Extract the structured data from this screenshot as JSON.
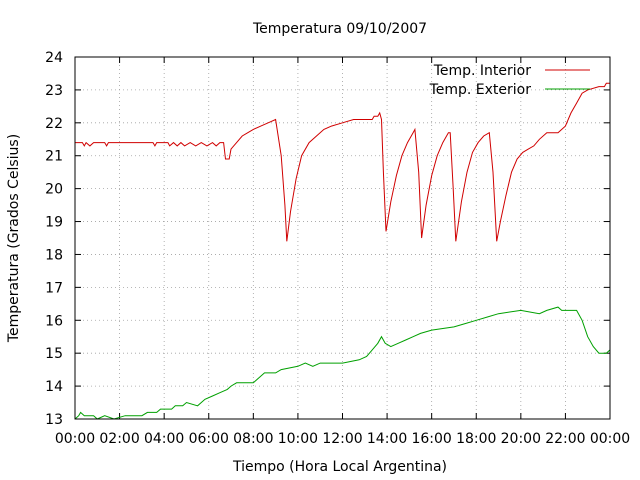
{
  "chart_data": {
    "type": "line",
    "title": "Temperatura 09/10/2007",
    "xlabel": "Tiempo (Hora Local Argentina)",
    "ylabel": "Temperatura (Grados Celsius)",
    "xlim": [
      0,
      24
    ],
    "ylim": [
      13,
      24
    ],
    "x_ticks": [
      "00:00",
      "02:00",
      "04:00",
      "06:00",
      "08:00",
      "10:00",
      "12:00",
      "14:00",
      "16:00",
      "18:00",
      "20:00",
      "22:00",
      "00:00"
    ],
    "y_ticks": [
      "13",
      "14",
      "15",
      "16",
      "17",
      "18",
      "19",
      "20",
      "21",
      "22",
      "23",
      "24"
    ],
    "grid": true,
    "legend_position": "top-right",
    "series": [
      {
        "name": "Temp. Interior",
        "color": "#d00000",
        "points": [
          [
            "00:00",
            21.4
          ],
          [
            "00:20",
            21.4
          ],
          [
            "00:25",
            21.3
          ],
          [
            "00:30",
            21.4
          ],
          [
            "00:40",
            21.3
          ],
          [
            "00:50",
            21.4
          ],
          [
            "01:20",
            21.4
          ],
          [
            "01:25",
            21.3
          ],
          [
            "01:30",
            21.4
          ],
          [
            "03:30",
            21.4
          ],
          [
            "03:35",
            21.3
          ],
          [
            "03:40",
            21.4
          ],
          [
            "04:10",
            21.4
          ],
          [
            "04:15",
            21.3
          ],
          [
            "04:25",
            21.4
          ],
          [
            "04:35",
            21.3
          ],
          [
            "04:45",
            21.4
          ],
          [
            "04:55",
            21.3
          ],
          [
            "05:10",
            21.4
          ],
          [
            "05:25",
            21.3
          ],
          [
            "05:40",
            21.4
          ],
          [
            "05:55",
            21.3
          ],
          [
            "06:10",
            21.4
          ],
          [
            "06:20",
            21.3
          ],
          [
            "06:30",
            21.4
          ],
          [
            "06:40",
            21.4
          ],
          [
            "06:45",
            20.9
          ],
          [
            "06:55",
            20.9
          ],
          [
            "07:00",
            21.2
          ],
          [
            "07:15",
            21.4
          ],
          [
            "07:30",
            21.6
          ],
          [
            "07:45",
            21.7
          ],
          [
            "08:00",
            21.8
          ],
          [
            "08:20",
            21.9
          ],
          [
            "08:40",
            22.0
          ],
          [
            "09:00",
            22.1
          ],
          [
            "09:15",
            21.0
          ],
          [
            "09:25",
            19.5
          ],
          [
            "09:30",
            18.4
          ],
          [
            "09:40",
            19.3
          ],
          [
            "09:55",
            20.3
          ],
          [
            "10:10",
            21.0
          ],
          [
            "10:30",
            21.4
          ],
          [
            "10:50",
            21.6
          ],
          [
            "11:10",
            21.8
          ],
          [
            "11:30",
            21.9
          ],
          [
            "12:00",
            22.0
          ],
          [
            "12:30",
            22.1
          ],
          [
            "13:00",
            22.1
          ],
          [
            "13:20",
            22.1
          ],
          [
            "13:25",
            22.2
          ],
          [
            "13:35",
            22.2
          ],
          [
            "13:40",
            22.3
          ],
          [
            "13:45",
            22.1
          ],
          [
            "13:50",
            20.5
          ],
          [
            "13:57",
            18.7
          ],
          [
            "14:10",
            19.6
          ],
          [
            "14:25",
            20.4
          ],
          [
            "14:40",
            21.0
          ],
          [
            "14:55",
            21.4
          ],
          [
            "15:10",
            21.7
          ],
          [
            "15:15",
            21.8
          ],
          [
            "15:25",
            20.5
          ],
          [
            "15:33",
            18.5
          ],
          [
            "15:45",
            19.5
          ],
          [
            "16:00",
            20.4
          ],
          [
            "16:15",
            21.0
          ],
          [
            "16:30",
            21.4
          ],
          [
            "16:45",
            21.7
          ],
          [
            "16:50",
            21.7
          ],
          [
            "16:58",
            20.0
          ],
          [
            "17:05",
            18.4
          ],
          [
            "17:20",
            19.6
          ],
          [
            "17:35",
            20.5
          ],
          [
            "17:50",
            21.1
          ],
          [
            "18:05",
            21.4
          ],
          [
            "18:20",
            21.6
          ],
          [
            "18:35",
            21.7
          ],
          [
            "18:45",
            20.5
          ],
          [
            "18:55",
            18.4
          ],
          [
            "19:05",
            19.0
          ],
          [
            "19:20",
            19.8
          ],
          [
            "19:35",
            20.5
          ],
          [
            "19:50",
            20.9
          ],
          [
            "20:05",
            21.1
          ],
          [
            "20:20",
            21.2
          ],
          [
            "20:35",
            21.3
          ],
          [
            "20:50",
            21.5
          ],
          [
            "21:10",
            21.7
          ],
          [
            "21:40",
            21.7
          ],
          [
            "22:00",
            21.9
          ],
          [
            "22:15",
            22.3
          ],
          [
            "22:30",
            22.6
          ],
          [
            "22:45",
            22.9
          ],
          [
            "23:00",
            23.0
          ],
          [
            "23:30",
            23.1
          ],
          [
            "23:45",
            23.1
          ],
          [
            "23:50",
            23.2
          ],
          [
            "24:00",
            23.2
          ]
        ]
      },
      {
        "name": "Temp. Exterior",
        "color": "#00a000",
        "points": [
          [
            "00:00",
            13.0
          ],
          [
            "00:10",
            13.1
          ],
          [
            "00:15",
            13.2
          ],
          [
            "00:25",
            13.1
          ],
          [
            "00:50",
            13.1
          ],
          [
            "01:00",
            13.0
          ],
          [
            "01:20",
            13.1
          ],
          [
            "01:45",
            13.0
          ],
          [
            "02:15",
            13.1
          ],
          [
            "03:00",
            13.1
          ],
          [
            "03:15",
            13.2
          ],
          [
            "03:40",
            13.2
          ],
          [
            "03:50",
            13.3
          ],
          [
            "04:20",
            13.3
          ],
          [
            "04:30",
            13.4
          ],
          [
            "04:50",
            13.4
          ],
          [
            "05:00",
            13.5
          ],
          [
            "05:30",
            13.4
          ],
          [
            "05:50",
            13.6
          ],
          [
            "06:10",
            13.7
          ],
          [
            "06:30",
            13.8
          ],
          [
            "06:50",
            13.9
          ],
          [
            "07:00",
            14.0
          ],
          [
            "07:15",
            14.1
          ],
          [
            "08:00",
            14.1
          ],
          [
            "08:10",
            14.2
          ],
          [
            "08:30",
            14.4
          ],
          [
            "09:00",
            14.4
          ],
          [
            "09:15",
            14.5
          ],
          [
            "10:00",
            14.6
          ],
          [
            "10:20",
            14.7
          ],
          [
            "10:40",
            14.6
          ],
          [
            "11:00",
            14.7
          ],
          [
            "12:00",
            14.7
          ],
          [
            "12:45",
            14.8
          ],
          [
            "13:05",
            14.9
          ],
          [
            "13:20",
            15.1
          ],
          [
            "13:35",
            15.3
          ],
          [
            "13:45",
            15.5
          ],
          [
            "13:55",
            15.3
          ],
          [
            "14:10",
            15.2
          ],
          [
            "14:30",
            15.3
          ],
          [
            "14:50",
            15.4
          ],
          [
            "15:10",
            15.5
          ],
          [
            "15:30",
            15.6
          ],
          [
            "16:00",
            15.7
          ],
          [
            "17:00",
            15.8
          ],
          [
            "17:30",
            15.9
          ],
          [
            "18:00",
            16.0
          ],
          [
            "18:30",
            16.1
          ],
          [
            "19:00",
            16.2
          ],
          [
            "20:00",
            16.3
          ],
          [
            "20:50",
            16.2
          ],
          [
            "21:10",
            16.3
          ],
          [
            "21:40",
            16.4
          ],
          [
            "21:50",
            16.3
          ],
          [
            "22:30",
            16.3
          ],
          [
            "22:45",
            16.0
          ],
          [
            "23:00",
            15.5
          ],
          [
            "23:15",
            15.2
          ],
          [
            "23:30",
            15.0
          ],
          [
            "23:50",
            15.0
          ],
          [
            "24:00",
            15.1
          ]
        ]
      }
    ]
  }
}
